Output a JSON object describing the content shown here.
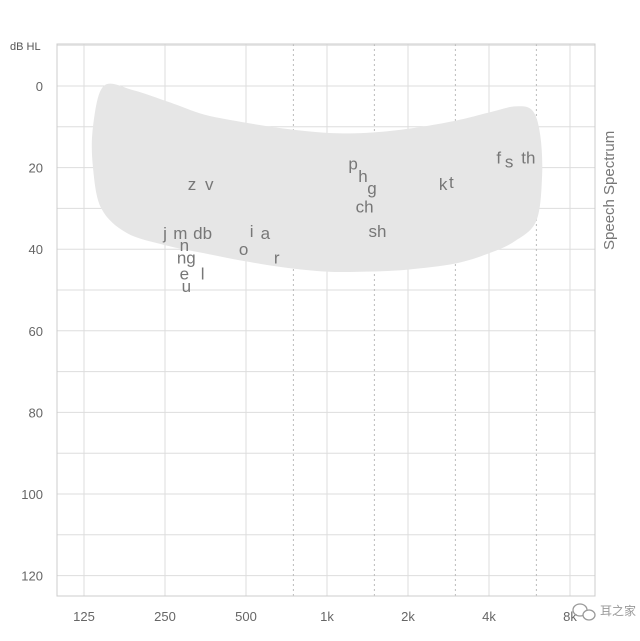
{
  "chart_data": {
    "type": "scatter",
    "title": "",
    "ylabel": "dB HL",
    "side_label": "Speech Spectrum",
    "x_scale": "log2",
    "x_ticks": [
      {
        "hz": 125,
        "label": "125"
      },
      {
        "hz": 250,
        "label": "250"
      },
      {
        "hz": 500,
        "label": "500"
      },
      {
        "hz": 1000,
        "label": "1k"
      },
      {
        "hz": 2000,
        "label": "2k"
      },
      {
        "hz": 4000,
        "label": "4k"
      },
      {
        "hz": 8000,
        "label": "8k"
      }
    ],
    "x_dotted_hz": [
      750,
      1500,
      3000,
      6000
    ],
    "y_ticks": [
      0,
      20,
      40,
      60,
      80,
      100,
      120
    ],
    "ylim": [
      -10,
      125
    ],
    "y_inverted": true,
    "grid": true,
    "region": {
      "name": "Speech Spectrum",
      "color": "#e6e6e6",
      "outline_hz_db": [
        [
          148,
          0
        ],
        [
          190,
          1
        ],
        [
          260,
          4
        ],
        [
          350,
          7
        ],
        [
          500,
          9
        ],
        [
          700,
          10.5
        ],
        [
          1000,
          11.5
        ],
        [
          1400,
          11.5
        ],
        [
          2000,
          10.5
        ],
        [
          3000,
          8.5
        ],
        [
          4000,
          6.5
        ],
        [
          5000,
          5
        ],
        [
          5800,
          6
        ],
        [
          6200,
          12
        ],
        [
          6300,
          22
        ],
        [
          6000,
          33
        ],
        [
          5000,
          38
        ],
        [
          4000,
          41
        ],
        [
          3000,
          43.5
        ],
        [
          2000,
          45
        ],
        [
          1400,
          45.5
        ],
        [
          1000,
          45.5
        ],
        [
          700,
          44.5
        ],
        [
          500,
          43
        ],
        [
          350,
          41
        ],
        [
          250,
          39
        ],
        [
          180,
          36
        ],
        [
          145,
          30
        ],
        [
          135,
          20
        ],
        [
          135,
          10
        ]
      ]
    },
    "points": [
      {
        "label": "z",
        "hz": 315,
        "db": 24
      },
      {
        "label": "v",
        "hz": 365,
        "db": 24
      },
      {
        "label": "j",
        "hz": 250,
        "db": 36
      },
      {
        "label": "m",
        "hz": 285,
        "db": 36
      },
      {
        "label": "db",
        "hz": 345,
        "db": 36
      },
      {
        "label": "n",
        "hz": 295,
        "db": 39
      },
      {
        "label": "ng",
        "hz": 300,
        "db": 42
      },
      {
        "label": "e",
        "hz": 295,
        "db": 46
      },
      {
        "label": "l",
        "hz": 345,
        "db": 46
      },
      {
        "label": "u",
        "hz": 300,
        "db": 49
      },
      {
        "label": "i",
        "hz": 525,
        "db": 35.5
      },
      {
        "label": "a",
        "hz": 590,
        "db": 36
      },
      {
        "label": "o",
        "hz": 490,
        "db": 40
      },
      {
        "label": "r",
        "hz": 650,
        "db": 42
      },
      {
        "label": "p",
        "hz": 1250,
        "db": 19
      },
      {
        "label": "h",
        "hz": 1360,
        "db": 22
      },
      {
        "label": "g",
        "hz": 1470,
        "db": 25
      },
      {
        "label": "ch",
        "hz": 1380,
        "db": 29.5
      },
      {
        "label": "sh",
        "hz": 1540,
        "db": 35.5
      },
      {
        "label": "k",
        "hz": 2700,
        "db": 24
      },
      {
        "label": "t",
        "hz": 2900,
        "db": 23.5
      },
      {
        "label": "f",
        "hz": 4350,
        "db": 17.5
      },
      {
        "label": "s",
        "hz": 4750,
        "db": 18.5
      },
      {
        "label": "th",
        "hz": 5600,
        "db": 17.5
      }
    ]
  },
  "watermark": {
    "text": "耳之家",
    "icon": "wechat-icon"
  }
}
